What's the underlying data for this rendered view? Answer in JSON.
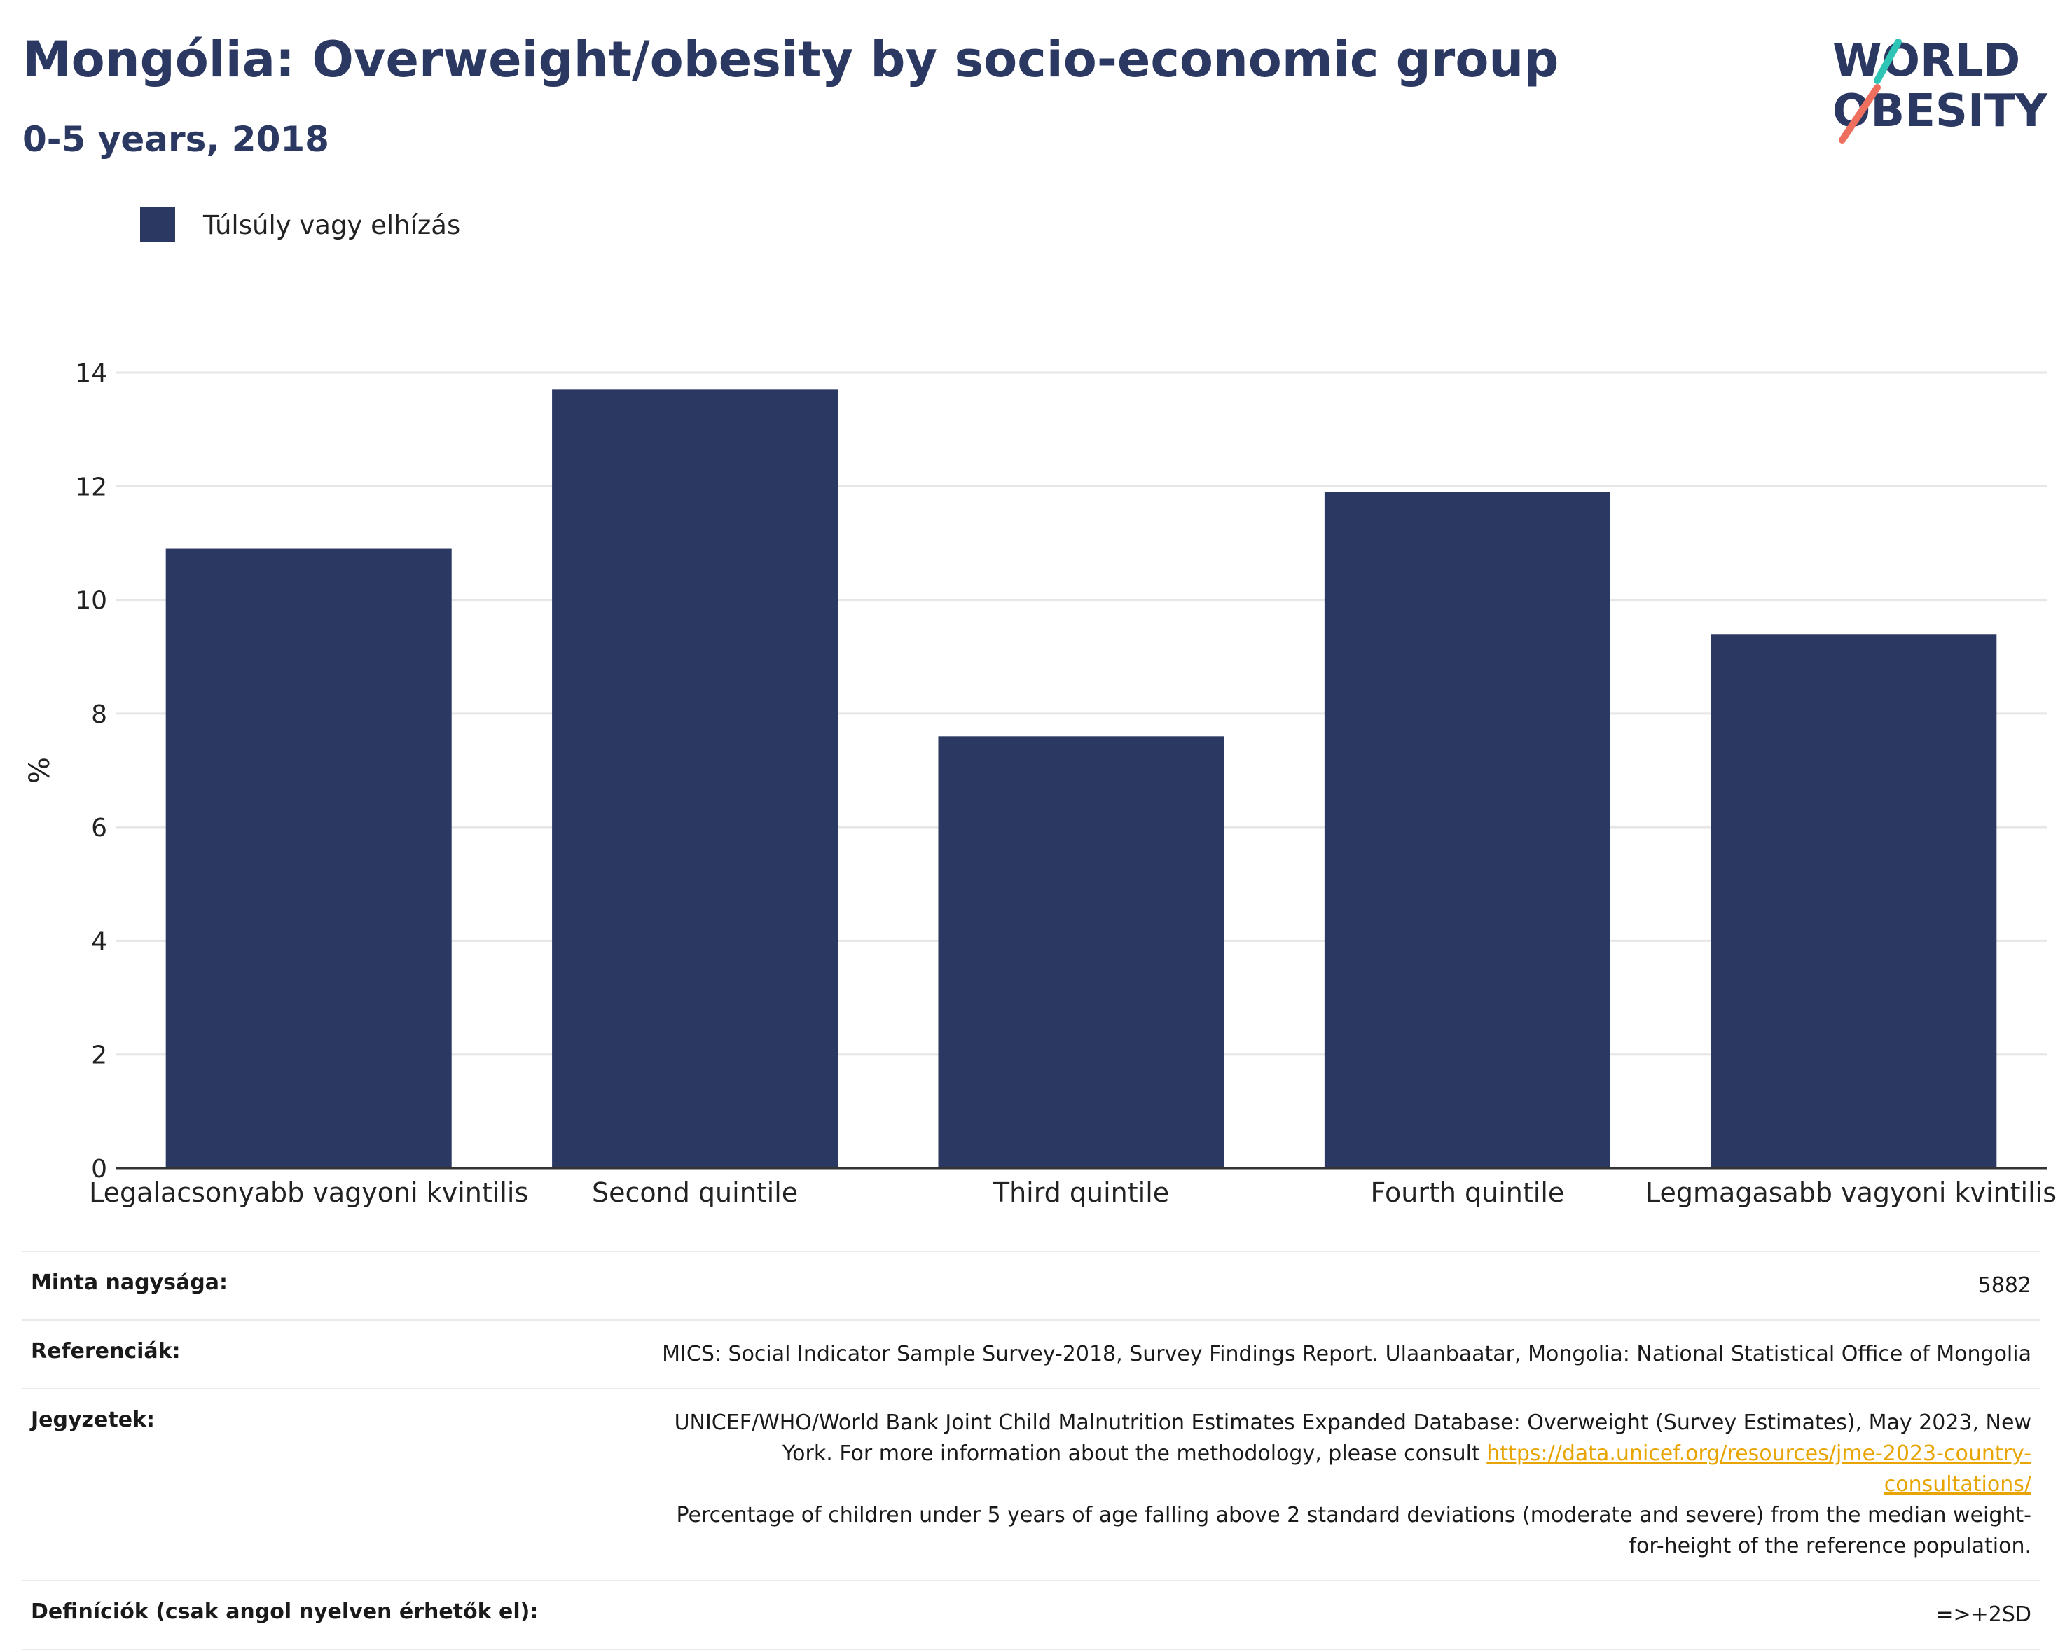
{
  "header": {
    "title": "Mongólia: Overweight/obesity by socio-economic group",
    "subtitle": "0-5 years, 2018"
  },
  "logo": {
    "line1": "WORLD",
    "line2": "OBESITY",
    "accent_teal": "#2ec4b6",
    "accent_coral": "#ef6f5e",
    "text_color": "#2b3862"
  },
  "colors": {
    "bar": "#2b3862",
    "grid": "#e6e6e6",
    "axis": "#333333"
  },
  "chart_data": {
    "type": "bar",
    "categories": [
      "Legalacsonyabb vagyoni kvintilis",
      "Second quintile",
      "Third quintile",
      "Fourth quintile",
      "Legmagasabb vagyoni kvintilis"
    ],
    "series": [
      {
        "name": "Túlsúly vagy elhízás",
        "values": [
          10.9,
          13.7,
          7.6,
          11.9,
          9.4
        ]
      }
    ],
    "ylabel": "%",
    "ylim": [
      0,
      14
    ],
    "yticks": [
      0,
      2,
      4,
      6,
      8,
      10,
      12,
      14
    ],
    "grid": true,
    "legend": "top-left"
  },
  "info": {
    "sample_label": "Minta nagysága:",
    "sample_value": "5882",
    "references_label": "Referenciák:",
    "references_value": "MICS: Social Indicator Sample Survey-2018, Survey Findings Report. Ulaanbaatar, Mongolia: National Statistical Office of Mongolia",
    "notes_label": "Jegyzetek:",
    "notes_text1": "UNICEF/WHO/World Bank Joint Child Malnutrition Estimates Expanded Database: Overweight (Survey Estimates), May 2023, New York. For more information about the methodology, please consult",
    "notes_link": "https://data.unicef.org/resources/jme-2023-country-consultations/",
    "notes_text2": "Percentage of children under 5 years of age falling above 2 standard deviations (moderate and severe) from the median weight-for-height of the reference population.",
    "definitions_label": "Definíciók (csak angol nyelven érhetők el):",
    "definitions_value": "=>+2SD"
  }
}
